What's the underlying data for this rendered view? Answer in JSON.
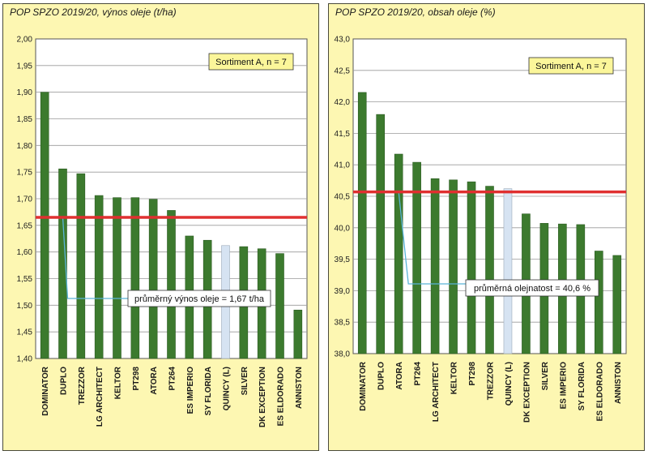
{
  "chart_data": [
    {
      "type": "bar",
      "title": "POP SPZO 2019/20, výnos oleje (t/ha)",
      "categories": [
        "DOMINATOR",
        "DUPLO",
        "TREZZOR",
        "LG ARCHITECT",
        "KELTOR",
        "PT298",
        "ATORA",
        "PT264",
        "ES IMPERIO",
        "SY FLORIDA",
        "QUINCY (L)",
        "SILVER",
        "DK EXCEPTION",
        "ES ELDORADO",
        "ANNISTON"
      ],
      "values": [
        1.9,
        1.756,
        1.747,
        1.706,
        1.702,
        1.702,
        1.699,
        1.678,
        1.63,
        1.622,
        1.612,
        1.61,
        1.606,
        1.597,
        1.491
      ],
      "highlight_category": "QUINCY (L)",
      "ylim": [
        1.4,
        2.0
      ],
      "yticks": [
        "2,00",
        "1,95",
        "1,90",
        "1,85",
        "1,80",
        "1,75",
        "1,70",
        "1,65",
        "1,60",
        "1,55",
        "1,50",
        "1,45",
        "1,40"
      ],
      "mean_value": 1.665,
      "mean_label": "průměrný výnos oleje = 1,67 t/ha",
      "sortiment_label": "Sortiment A, n = 7",
      "grid": "horizontal",
      "colors": {
        "bar": "#3c7a2e",
        "highlight_bar": "#d6e3f2",
        "mean_line": "#e03030",
        "connector": "#5ab4d8",
        "plot_bg": "#ffffff",
        "panel_bg": "#fdf7b2",
        "box_bg": "#fbf69a"
      }
    },
    {
      "type": "bar",
      "title": "POP SPZO 2019/20, obsah oleje (%)",
      "categories": [
        "DOMINATOR",
        "DUPLO",
        "ATORA",
        "PT264",
        "LG ARCHITECT",
        "KELTOR",
        "PT298",
        "TREZZOR",
        "QUINCY (L)",
        "DK EXCEPTION",
        "SILVER",
        "ES IMPERIO",
        "SY FLORIDA",
        "ES ELDORADO",
        "ANNISTON"
      ],
      "values": [
        42.15,
        41.8,
        41.17,
        41.04,
        40.78,
        40.76,
        40.73,
        40.66,
        40.62,
        40.22,
        40.07,
        40.06,
        40.05,
        39.63,
        39.56
      ],
      "highlight_category": "QUINCY (L)",
      "ylim": [
        38.0,
        43.0
      ],
      "yticks": [
        "43,0",
        "42,5",
        "42,0",
        "41,5",
        "41,0",
        "40,5",
        "40,0",
        "39,5",
        "39,0",
        "38,5",
        "38,0"
      ],
      "mean_value": 40.57,
      "mean_label": "průměrná olejnatost = 40,6 %",
      "sortiment_label": "Sortiment A, n = 7",
      "grid": "horizontal",
      "colors": {
        "bar": "#3c7a2e",
        "highlight_bar": "#d6e3f2",
        "mean_line": "#e03030",
        "connector": "#5ab4d8",
        "plot_bg": "#ffffff",
        "panel_bg": "#fdf7b2",
        "box_bg": "#fbf69a"
      }
    }
  ]
}
